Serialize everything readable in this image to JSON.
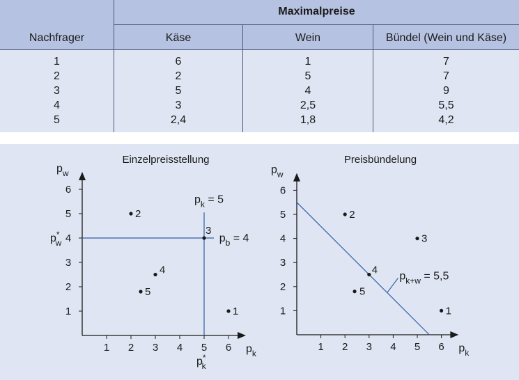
{
  "table": {
    "group_header": "Maximalpreise",
    "columns": [
      "Nachfrager",
      "Käse",
      "Wein",
      "Bündel (Wein und Käse)"
    ],
    "rows": [
      [
        "1",
        "6",
        "1",
        "7"
      ],
      [
        "2",
        "2",
        "5",
        "7"
      ],
      [
        "3",
        "5",
        "4",
        "9"
      ],
      [
        "4",
        "3",
        "2,5",
        "5,5"
      ],
      [
        "5",
        "2,4",
        "1,8",
        "4,2"
      ]
    ]
  },
  "colors": {
    "panel": "#dfe5f2",
    "header": "#b6c2e1",
    "line": "#2d5ea8"
  },
  "chart_data": [
    {
      "type": "scatter",
      "title": "Einzelpreisstellung",
      "ylabel_main": "p",
      "ylabel_sub": "w",
      "xlabel_main": "p",
      "xlabel_sub": "k",
      "xlim": [
        0,
        6.6
      ],
      "ylim": [
        0,
        6.6
      ],
      "xticks": [
        "1",
        "2",
        "3",
        "4",
        "5",
        "6"
      ],
      "yticks": [
        "1",
        "2",
        "3",
        "4",
        "5",
        "6"
      ],
      "points": [
        {
          "label": "1",
          "x": 6,
          "y": 1
        },
        {
          "label": "2",
          "x": 2,
          "y": 5
        },
        {
          "label": "3",
          "x": 5,
          "y": 4
        },
        {
          "label": "4",
          "x": 3,
          "y": 2.5
        },
        {
          "label": "5",
          "x": 2.4,
          "y": 1.8
        }
      ],
      "price_lines": {
        "pk": 5,
        "pw": 4
      },
      "annotations": {
        "pk_label_main": "p",
        "pk_label_sub": "k",
        "pk_label_rest": " = 5",
        "pb_label_main": "p",
        "pb_label_sub": "b",
        "pb_label_rest": " = 4",
        "pw_star_main": "p",
        "pw_star_sup": "*",
        "pw_star_sub": "w",
        "pk_star_main": "p",
        "pk_star_sup": "*",
        "pk_star_sub": "k"
      }
    },
    {
      "type": "scatter",
      "title": "Preisbündelung",
      "ylabel_main": "p",
      "ylabel_sub": "w",
      "xlabel_main": "p",
      "xlabel_sub": "k",
      "xlim": [
        0,
        6.6
      ],
      "ylim": [
        0,
        6.6
      ],
      "xticks": [
        "1",
        "2",
        "3",
        "4",
        "5",
        "6"
      ],
      "yticks": [
        "1",
        "2",
        "3",
        "4",
        "5",
        "6"
      ],
      "points": [
        {
          "label": "1",
          "x": 6,
          "y": 1
        },
        {
          "label": "2",
          "x": 2,
          "y": 5
        },
        {
          "label": "3",
          "x": 5,
          "y": 4
        },
        {
          "label": "4",
          "x": 3,
          "y": 2.5
        },
        {
          "label": "5",
          "x": 2.4,
          "y": 1.8
        }
      ],
      "bundle_price": 5.5,
      "annotations": {
        "bundle_label_main": "p",
        "bundle_label_sub": "k+w",
        "bundle_label_rest": " = 5,5"
      }
    }
  ]
}
